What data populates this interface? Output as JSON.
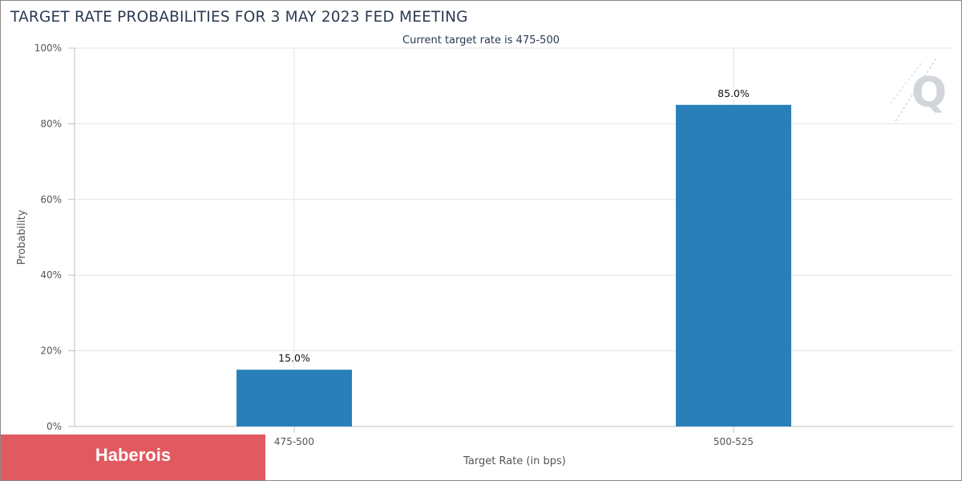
{
  "colors": {
    "bar": "#2980b9",
    "grid": "#e3e3e3",
    "axis": "#c0c0c0",
    "badge": "#e05a5f",
    "title": "#2b3a52"
  },
  "watermark": {
    "icon": "q-logo-icon"
  },
  "badge": {
    "label": "Haberois"
  },
  "chart_data": {
    "type": "bar",
    "title": "TARGET RATE PROBABILITIES FOR 3 MAY 2023 FED MEETING",
    "subtitle": "Current target rate is 475-500",
    "xlabel": "Target Rate (in bps)",
    "ylabel": "Probability",
    "categories": [
      "475-500",
      "500-525"
    ],
    "values": [
      15.0,
      85.0
    ],
    "data_labels": [
      "15.0%",
      "85.0%"
    ],
    "ylim": [
      0,
      100
    ],
    "yticks": [
      0,
      20,
      40,
      60,
      80,
      100
    ],
    "ytick_labels": [
      "0%",
      "20%",
      "40%",
      "60%",
      "80%",
      "100%"
    ],
    "grid": true,
    "legend": "none"
  }
}
